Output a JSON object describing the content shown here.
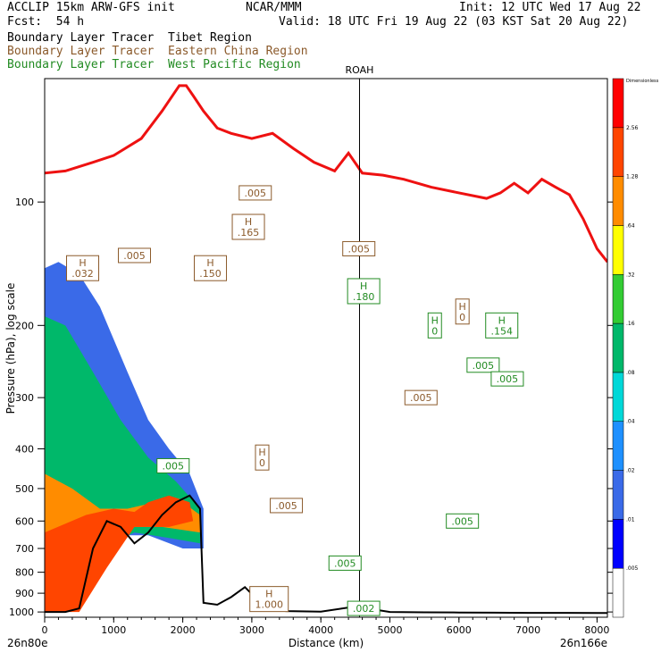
{
  "header": {
    "model": "ACCLIP 15km ARW-GFS init",
    "center": "NCAR/MMM",
    "init": "Init: 12 UTC Wed 17 Aug 22",
    "fcst": "Fcst:  54 h",
    "valid": "Valid: 18 UTC Fri 19 Aug 22 (03 KST Sat 20 Aug 22)"
  },
  "legend_lines": [
    {
      "text": "Boundary Layer Tracer  Tibet Region",
      "color": "#000000"
    },
    {
      "text": "Boundary Layer Tracer  Eastern China Region",
      "color": "#8B5A2B"
    },
    {
      "text": "Boundary Layer Tracer  West Pacific Region",
      "color": "#228B22"
    }
  ],
  "chart_data": {
    "type": "area",
    "xlabel": "Distance (km)",
    "ylabel": "Pressure (hPa), log scale",
    "x_ticks": [
      0,
      1000,
      2000,
      3000,
      4000,
      5000,
      6000,
      7000,
      8000
    ],
    "x_tick_labels": [
      "0",
      "1000",
      "2000",
      "3000",
      "4000",
      "5000",
      "6000",
      "7000",
      "8000"
    ],
    "xlim": [
      0,
      8150
    ],
    "y_ticks": [
      100,
      200,
      300,
      400,
      500,
      600,
      700,
      800,
      900,
      1000
    ],
    "y_tick_labels": [
      "100",
      "200",
      "300",
      "400",
      "500",
      "600",
      "700",
      "800",
      "900",
      "1000"
    ],
    "ylim": [
      1030,
      50
    ],
    "y_scale": "log",
    "endpoint_left": "26n80e",
    "endpoint_right": "26n166e",
    "marker": {
      "label": "ROAH",
      "x": 4560
    },
    "colorbar": {
      "title": "Dimensionless",
      "levels": [
        0.005,
        0.01,
        0.02,
        0.04,
        0.08,
        0.16,
        0.32,
        0.64,
        1.28,
        2.56
      ],
      "labels": [
        ".005",
        ".01",
        ".02",
        ".04",
        ".08",
        ".16",
        ".32",
        ".64",
        "1.28",
        "2.56"
      ],
      "colors": [
        "#ffffff",
        "#0000ff",
        "#3a6ae8",
        "#1e90ff",
        "#00d8d8",
        "#00b86a",
        "#33cc33",
        "#ffff00",
        "#ff8c00",
        "#ff4500",
        "#ff0000"
      ]
    },
    "tropopause": {
      "color": "#ee1111",
      "x": [
        0,
        300,
        700,
        1000,
        1400,
        1700,
        1950,
        2050,
        2150,
        2300,
        2500,
        2700,
        3000,
        3300,
        3600,
        3900,
        4200,
        4400,
        4600,
        4900,
        5200,
        5600,
        6000,
        6400,
        6600,
        6800,
        7000,
        7200,
        7400,
        7600,
        7800,
        8000,
        8150
      ],
      "p": [
        85,
        84,
        80,
        77,
        70,
        60,
        52,
        52,
        55,
        60,
        66,
        68,
        70,
        68,
        74,
        80,
        84,
        76,
        85,
        86,
        88,
        92,
        95,
        98,
        95,
        90,
        95,
        88,
        92,
        96,
        110,
        130,
        140
      ]
    },
    "terrain": {
      "color": "#000000",
      "x": [
        0,
        300,
        500,
        700,
        900,
        1100,
        1300,
        1500,
        1700,
        1900,
        2100,
        2250,
        2300,
        2500,
        2700,
        2900,
        3100,
        3300,
        3500,
        4000,
        4500,
        5000,
        5500,
        6000,
        6500,
        7000,
        7500,
        8000,
        8150
      ],
      "p": [
        1000,
        1000,
        980,
        700,
        600,
        620,
        680,
        640,
        580,
        540,
        520,
        560,
        950,
        960,
        920,
        870,
        940,
        990,
        995,
        998,
        970,
        1000,
        1002,
        1003,
        1004,
        1005,
        1005,
        1006,
        1006
      ]
    },
    "tibet_tracer_shading": [
      {
        "level": 0.01,
        "x": [
          0,
          200,
          500,
          800,
          1200,
          1500,
          1800,
          2100,
          2300,
          2300,
          2000,
          1500,
          1000,
          600,
          300,
          0
        ],
        "p": [
          145,
          140,
          150,
          180,
          260,
          340,
          400,
          460,
          560,
          700,
          700,
          650,
          650,
          800,
          1000,
          1000
        ]
      },
      {
        "level": 0.08,
        "x": [
          0,
          300,
          700,
          1100,
          1500,
          1900,
          2250,
          2250,
          1800,
          1300,
          800,
          400,
          0
        ],
        "p": [
          190,
          200,
          260,
          340,
          420,
          480,
          560,
          680,
          660,
          640,
          700,
          900,
          1000
        ]
      },
      {
        "level": 0.64,
        "x": [
          0,
          400,
          800,
          1200,
          1600,
          2000,
          2250,
          2250,
          1700,
          1200,
          700,
          300,
          0
        ],
        "p": [
          460,
          500,
          560,
          560,
          540,
          540,
          580,
          640,
          620,
          620,
          780,
          950,
          1000
        ]
      },
      {
        "level": 1.28,
        "x": [
          0,
          600,
          1000,
          1300,
          1500,
          1800,
          2100,
          2150,
          1800,
          1300,
          900,
          500,
          0
        ],
        "p": [
          640,
          580,
          560,
          570,
          540,
          520,
          540,
          600,
          620,
          620,
          780,
          1000,
          1000
        ]
      }
    ],
    "eastern_china_contours": {
      "color": "#8B5A2B",
      "labels": [
        {
          "text": ".005",
          "x": 3050,
          "p": 95
        },
        {
          "text": ".005",
          "x": 1300,
          "p": 135
        },
        {
          "text": ".005",
          "x": 4550,
          "p": 130
        },
        {
          "text": ".005",
          "x": 5450,
          "p": 300
        },
        {
          "text": ".005",
          "x": 3500,
          "p": 550
        },
        {
          "text": "H\n.165",
          "x": 2950,
          "p": 115
        },
        {
          "text": "H\n.150",
          "x": 2400,
          "p": 145
        },
        {
          "text": "H\n.032",
          "x": 550,
          "p": 145
        },
        {
          "text": "H\n0",
          "x": 3150,
          "p": 420
        },
        {
          "text": "H\n0",
          "x": 6050,
          "p": 185
        },
        {
          "text": "H\n1.000",
          "x": 3250,
          "p": 930
        }
      ]
    },
    "west_pacific_contours": {
      "color": "#228B22",
      "labels": [
        {
          "text": ".005",
          "x": 6350,
          "p": 250
        },
        {
          "text": ".005",
          "x": 6700,
          "p": 270
        },
        {
          "text": ".005",
          "x": 6050,
          "p": 600
        },
        {
          "text": ".005",
          "x": 4350,
          "p": 760
        },
        {
          "text": ".005",
          "x": 1860,
          "p": 440
        },
        {
          "text": ".002",
          "x": 4620,
          "p": 980
        },
        {
          "text": "H\n0",
          "x": 5650,
          "p": 200
        },
        {
          "text": "H\n.154",
          "x": 6620,
          "p": 200
        },
        {
          "text": "H\n.180",
          "x": 4620,
          "p": 165
        }
      ]
    }
  }
}
